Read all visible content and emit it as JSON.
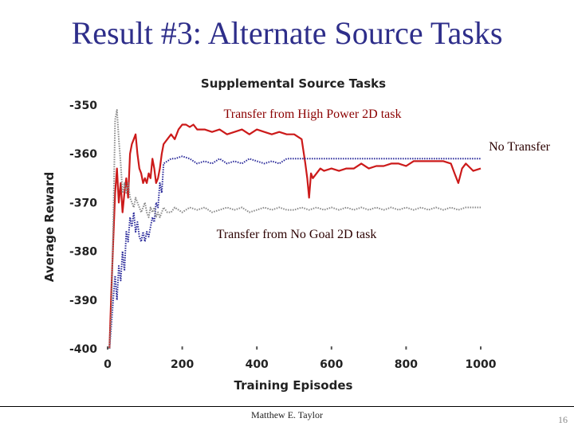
{
  "slide": {
    "title": "Result #3: Alternate Source Tasks",
    "author": "Matthew E. Taylor",
    "page_number": "16"
  },
  "colors": {
    "high_power": "#cc1a1a",
    "no_transfer": "#2a2a9a",
    "no_goal": "#888888",
    "annot_dark": "#2b0000",
    "annot_red": "#8b0000"
  },
  "chart_data": {
    "type": "line",
    "title": "Supplemental Source Tasks",
    "xlabel": "Training Episodes",
    "ylabel": "Average Reward",
    "xlim": [
      0,
      1000
    ],
    "ylim": [
      -400,
      -350
    ],
    "xticks": [
      0,
      200,
      400,
      600,
      800,
      1000
    ],
    "yticks": [
      -350,
      -360,
      -370,
      -380,
      -390,
      -400
    ],
    "grid": false,
    "annotations": [
      {
        "text": "Transfer from High Power 2D task",
        "series": "high_power"
      },
      {
        "text": "No Transfer",
        "series": "no_transfer"
      },
      {
        "text": "Transfer from No Goal 2D task",
        "series": "no_goal"
      }
    ],
    "series": [
      {
        "key": "high_power",
        "style": "solid",
        "x": [
          5,
          10,
          15,
          20,
          25,
          30,
          35,
          40,
          45,
          50,
          55,
          60,
          65,
          70,
          75,
          80,
          85,
          90,
          95,
          100,
          105,
          110,
          115,
          120,
          125,
          130,
          135,
          140,
          145,
          150,
          160,
          170,
          180,
          190,
          200,
          210,
          220,
          230,
          240,
          260,
          280,
          300,
          320,
          340,
          360,
          380,
          400,
          420,
          440,
          460,
          480,
          500,
          520,
          530,
          535,
          540,
          545,
          550,
          560,
          570,
          580,
          600,
          620,
          640,
          660,
          680,
          700,
          720,
          740,
          760,
          780,
          800,
          820,
          840,
          860,
          880,
          900,
          920,
          930,
          940,
          950,
          960,
          980,
          1000
        ],
        "y": [
          -400,
          -388,
          -378,
          -368,
          -363,
          -370,
          -366,
          -372,
          -368,
          -365,
          -369,
          -360,
          -358,
          -357,
          -356,
          -360,
          -363,
          -364,
          -366,
          -365,
          -366,
          -364,
          -365,
          -361,
          -363,
          -366,
          -365,
          -363,
          -360,
          -358,
          -357,
          -356,
          -357,
          -355,
          -354,
          -354,
          -354.5,
          -354,
          -355,
          -355,
          -355.5,
          -355,
          -356,
          -355.5,
          -355,
          -356,
          -355,
          -355.5,
          -356,
          -355.5,
          -356,
          -356,
          -357,
          -362,
          -365,
          -369,
          -364,
          -365,
          -364,
          -363,
          -363.5,
          -363,
          -363.5,
          -363,
          -363,
          -362,
          -363,
          -362.5,
          -362.5,
          -362,
          -362,
          -362.5,
          -361.5,
          -361.5,
          -361.5,
          -361.5,
          -361.5,
          -362,
          -364,
          -366,
          -363,
          -362,
          -363.5,
          -363
        ]
      },
      {
        "key": "no_transfer",
        "style": "dotted",
        "x": [
          5,
          10,
          15,
          20,
          25,
          30,
          35,
          40,
          45,
          50,
          55,
          60,
          65,
          70,
          75,
          80,
          85,
          90,
          95,
          100,
          105,
          110,
          115,
          120,
          125,
          130,
          135,
          140,
          145,
          150,
          160,
          170,
          180,
          200,
          220,
          240,
          260,
          280,
          300,
          320,
          340,
          360,
          380,
          400,
          420,
          440,
          460,
          480,
          500,
          520,
          540,
          560,
          600,
          700,
          800,
          900,
          1000
        ],
        "y": [
          -400,
          -395,
          -390,
          -385,
          -390,
          -383,
          -386,
          -380,
          -384,
          -376,
          -378,
          -373,
          -375,
          -372,
          -376,
          -374,
          -377,
          -378,
          -376,
          -378,
          -376,
          -377,
          -375,
          -373,
          -374,
          -370,
          -371,
          -366,
          -368,
          -362,
          -361.5,
          -361,
          -361,
          -360.5,
          -361,
          -362,
          -361.5,
          -362,
          -361,
          -362,
          -361.5,
          -362,
          -361,
          -361.5,
          -362,
          -361.5,
          -362,
          -361,
          -361,
          -361,
          -361,
          -361,
          -361,
          -361,
          -361,
          -361,
          -361
        ]
      },
      {
        "key": "no_goal",
        "style": "dotted",
        "x": [
          5,
          10,
          15,
          20,
          25,
          30,
          35,
          40,
          45,
          50,
          55,
          60,
          65,
          70,
          75,
          80,
          85,
          90,
          95,
          100,
          105,
          110,
          115,
          120,
          125,
          130,
          135,
          140,
          145,
          150,
          160,
          170,
          180,
          200,
          220,
          240,
          260,
          280,
          300,
          320,
          340,
          360,
          380,
          400,
          420,
          440,
          460,
          480,
          500,
          520,
          540,
          560,
          580,
          600,
          620,
          640,
          660,
          680,
          700,
          720,
          740,
          760,
          780,
          800,
          820,
          840,
          860,
          880,
          900,
          920,
          940,
          960,
          980,
          1000
        ],
        "y": [
          -400,
          -392,
          -375,
          -353,
          -351,
          -357,
          -362,
          -368,
          -366,
          -368,
          -366,
          -369,
          -370,
          -371,
          -369,
          -370,
          -371,
          -372,
          -371,
          -370,
          -372,
          -373,
          -371,
          -372,
          -371,
          -373,
          -372,
          -373,
          -372,
          -371,
          -372,
          -372,
          -371,
          -372,
          -371,
          -371.5,
          -371,
          -372,
          -371.5,
          -371,
          -371.5,
          -371,
          -372,
          -371.5,
          -371,
          -371.5,
          -371,
          -371.5,
          -371.5,
          -371,
          -371.5,
          -371,
          -371.5,
          -371,
          -371.5,
          -371,
          -371.5,
          -371,
          -371.5,
          -371,
          -371.5,
          -371,
          -371.5,
          -371,
          -371.5,
          -371,
          -371.5,
          -371,
          -371.5,
          -371,
          -371.5,
          -371,
          -371,
          -371
        ]
      }
    ]
  }
}
